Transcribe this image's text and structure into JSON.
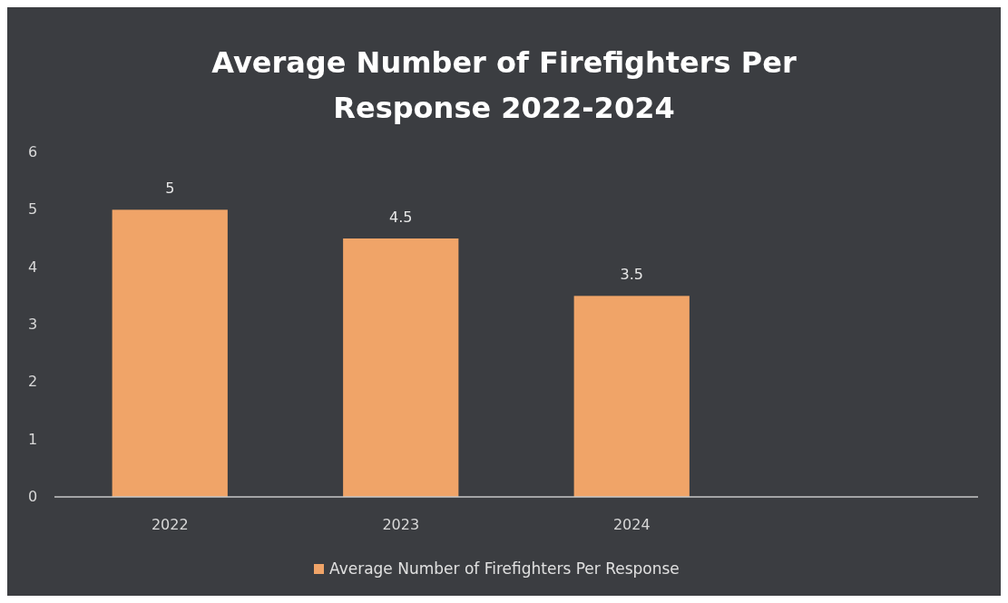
{
  "chart_data": {
    "type": "bar",
    "title": "Average Number of Firefighters Per Response 2022-2024",
    "categories": [
      "2022",
      "2023",
      "2024",
      null
    ],
    "series": [
      {
        "name": "Average Number of Firefighters Per Response",
        "color": "#f0a468",
        "values": [
          5,
          4.5,
          3.5,
          null
        ]
      }
    ],
    "ylim": [
      0,
      6
    ],
    "yticks": [
      0,
      1,
      2,
      3,
      4,
      5,
      6
    ],
    "grid": false,
    "data_labels": true,
    "legend": "bottom"
  }
}
